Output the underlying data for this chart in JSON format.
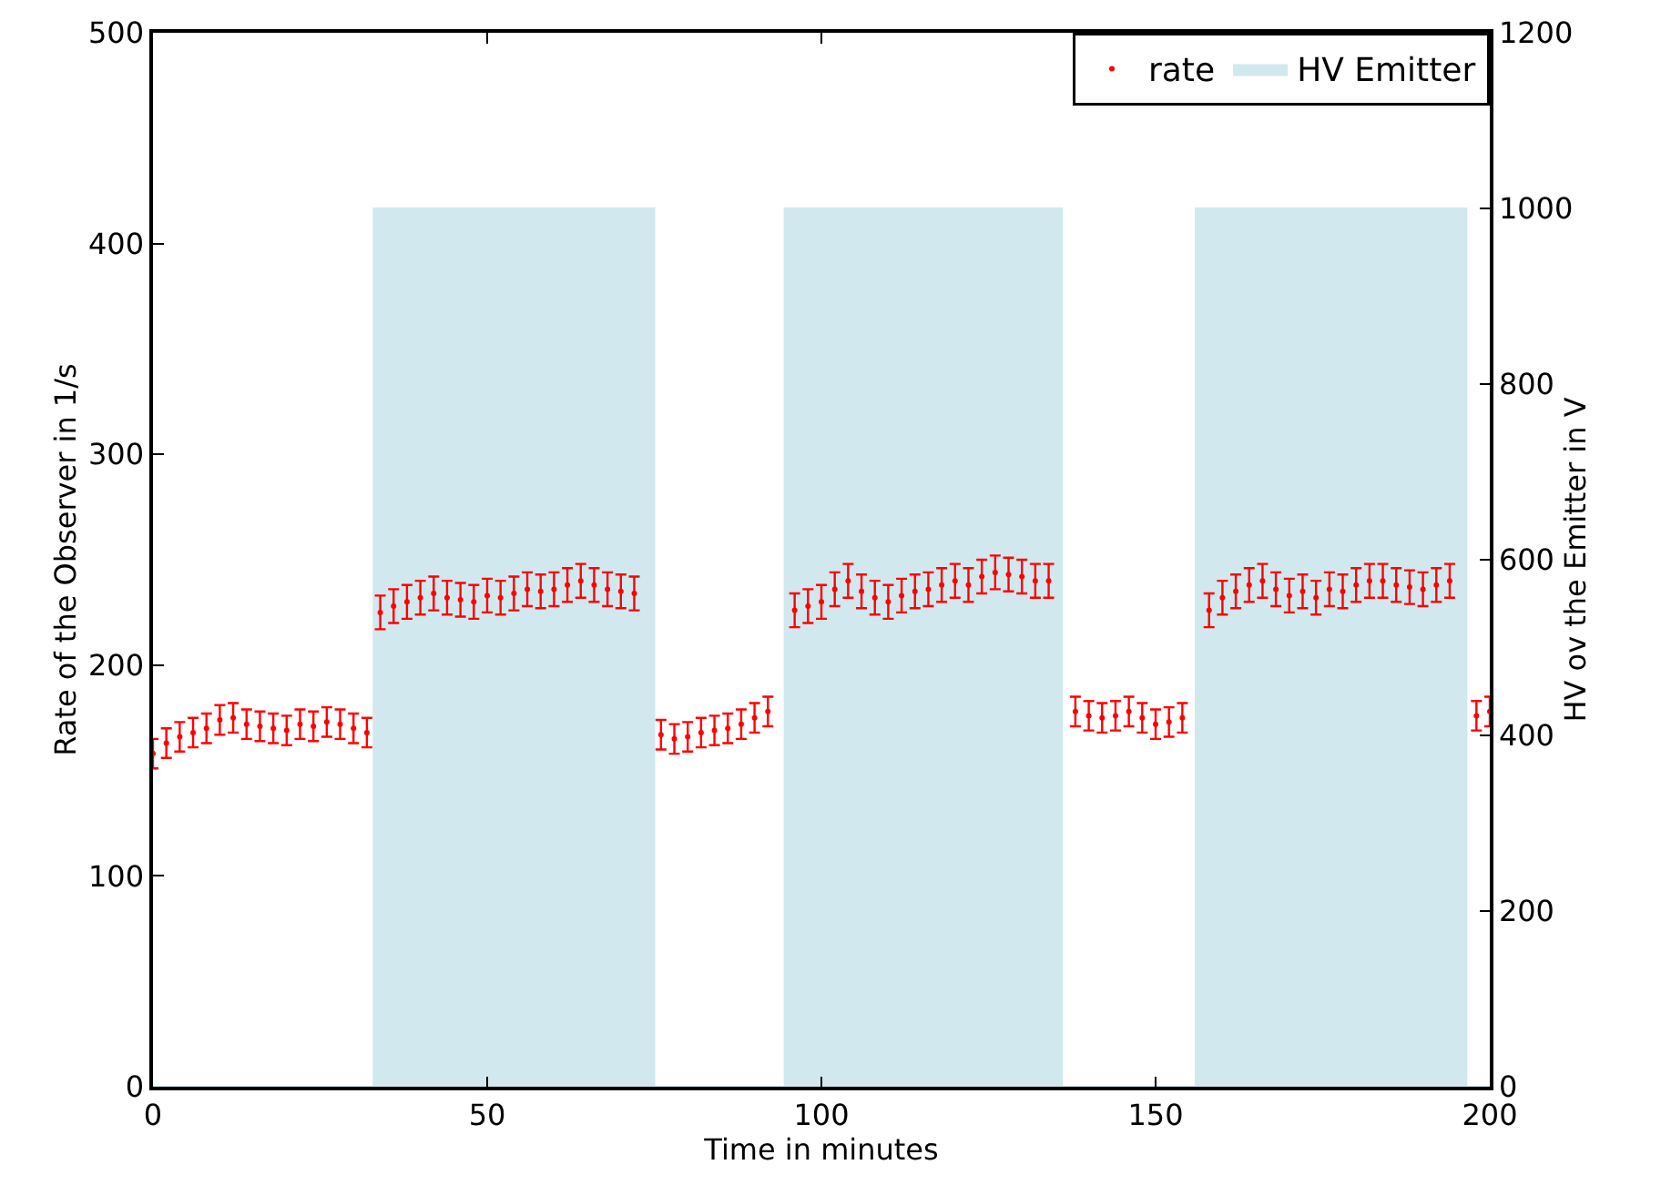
{
  "chart_data": {
    "type": "scatter",
    "xlabel": "Time in minutes",
    "ylabel": "Rate of the Observer in 1/s",
    "y2label": "HV ov the Emitter in V",
    "xlim": [
      0,
      200
    ],
    "xticks": [
      0,
      50,
      100,
      150,
      200
    ],
    "ylim": [
      0,
      500
    ],
    "yticks": [
      0,
      100,
      200,
      300,
      400,
      500
    ],
    "y2lim": [
      0,
      1200
    ],
    "y2ticks": [
      0,
      200,
      400,
      600,
      800,
      1000,
      1200
    ],
    "grid": false,
    "legend": "top right",
    "series": [
      {
        "name": "rate",
        "marker": "circle",
        "color": "#ff0000",
        "errors": [
          7,
          7,
          7,
          7,
          7,
          7,
          7,
          7,
          7,
          7,
          7,
          7,
          7,
          7,
          7,
          7,
          7,
          8,
          8,
          8,
          8,
          8,
          8,
          8,
          8,
          8,
          8,
          8,
          8,
          8,
          8,
          8,
          8,
          8,
          8,
          8,
          8,
          7,
          7,
          7,
          7,
          7,
          7,
          7,
          7,
          7,
          8,
          8,
          8,
          8,
          8,
          8,
          8,
          8,
          8,
          8,
          8,
          8,
          8,
          8,
          8,
          8,
          8,
          8,
          8,
          8,
          7,
          7,
          7,
          7,
          7,
          7,
          7,
          7,
          7,
          8,
          8,
          8,
          8,
          8,
          8,
          8,
          8,
          8,
          8,
          8,
          8,
          8,
          8,
          8,
          8,
          8,
          8,
          8,
          7,
          7
        ],
        "x": [
          0,
          2,
          4,
          6,
          8,
          10,
          12,
          14,
          16,
          18,
          20,
          22,
          24,
          26,
          28,
          30,
          32,
          34,
          36,
          38,
          40,
          42,
          44,
          46,
          48,
          50,
          52,
          54,
          56,
          58,
          60,
          62,
          64,
          66,
          68,
          70,
          72,
          76,
          78,
          80,
          82,
          84,
          86,
          88,
          90,
          92,
          96,
          98,
          100,
          102,
          104,
          106,
          108,
          110,
          112,
          114,
          116,
          118,
          120,
          122,
          124,
          126,
          128,
          130,
          132,
          134,
          138,
          140,
          142,
          144,
          146,
          148,
          150,
          152,
          154,
          158,
          160,
          162,
          164,
          166,
          168,
          170,
          172,
          174,
          176,
          178,
          180,
          182,
          184,
          186,
          188,
          190,
          192,
          194,
          198,
          200
        ],
        "values": [
          158,
          163,
          166,
          168,
          170,
          174,
          175,
          172,
          171,
          170,
          169,
          172,
          171,
          173,
          172,
          170,
          168,
          225,
          228,
          230,
          232,
          234,
          232,
          231,
          230,
          233,
          232,
          234,
          236,
          235,
          236,
          238,
          240,
          238,
          236,
          235,
          234,
          167,
          165,
          166,
          168,
          169,
          170,
          172,
          175,
          178,
          226,
          228,
          230,
          236,
          240,
          235,
          232,
          230,
          233,
          235,
          236,
          238,
          240,
          238,
          242,
          244,
          243,
          242,
          240,
          240,
          178,
          176,
          175,
          176,
          178,
          175,
          172,
          173,
          175,
          226,
          232,
          235,
          238,
          240,
          236,
          233,
          235,
          232,
          236,
          235,
          238,
          240,
          240,
          238,
          237,
          236,
          238,
          240,
          176,
          178
        ]
      },
      {
        "name": "HV Emitter",
        "type": "area",
        "axis": "y2",
        "color": "#d1e8ee",
        "x": [
          0,
          33,
          33,
          75,
          75,
          94.5,
          94.5,
          136,
          136,
          156,
          156,
          196.5,
          196.5,
          200
        ],
        "values": [
          0,
          0,
          1000,
          1000,
          0,
          0,
          1000,
          1000,
          0,
          0,
          1000,
          1000,
          0,
          0
        ]
      }
    ]
  }
}
